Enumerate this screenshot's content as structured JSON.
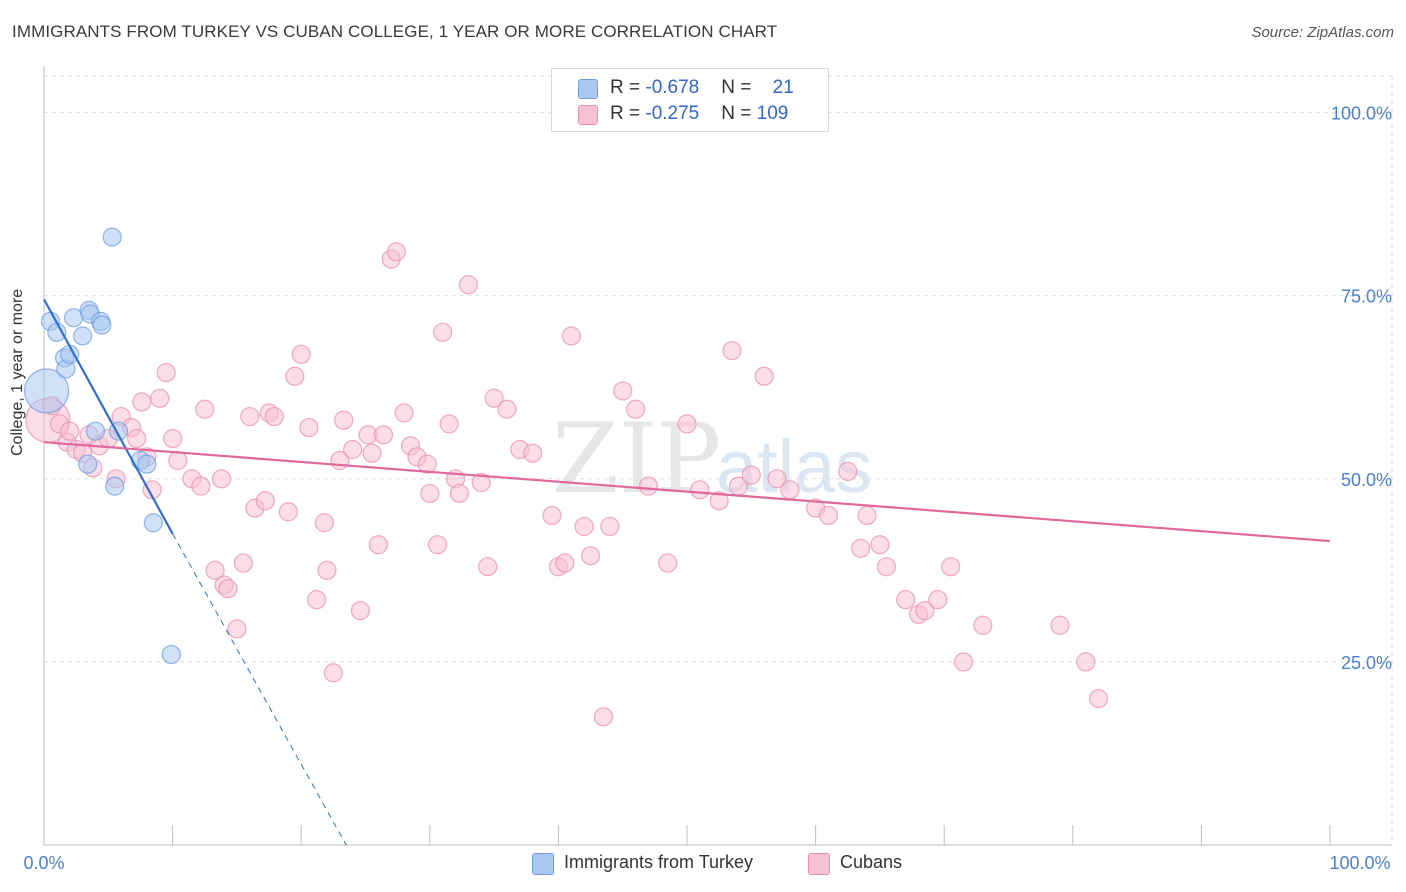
{
  "title": "IMMIGRANTS FROM TURKEY VS CUBAN COLLEGE, 1 YEAR OR MORE CORRELATION CHART",
  "source": "Source: ZipAtlas.com",
  "watermark": {
    "zip": "ZIP",
    "atlas": "atlas"
  },
  "legend": {
    "rows": [
      {
        "r_label": "R = ",
        "r_value": "-0.678",
        "n_label": "N = ",
        "n_value": "21",
        "color": "#a9c8f0",
        "border": "#6d9ee0"
      },
      {
        "r_label": "R = ",
        "r_value": "-0.275",
        "n_label": "N = ",
        "n_value": "109",
        "color": "#f7c1d3",
        "border": "#e98fae"
      }
    ]
  },
  "bottom_legend": [
    {
      "label": "Immigrants from Turkey",
      "color": "#a9c8f0",
      "border": "#6d9ee0"
    },
    {
      "label": "Cubans",
      "color": "#f7c1d3",
      "border": "#e98fae"
    }
  ],
  "chart_data": {
    "type": "scatter",
    "title": "IMMIGRANTS FROM TURKEY VS CUBAN COLLEGE, 1 YEAR OR MORE CORRELATION CHART",
    "xlabel": "",
    "ylabel": "College, 1 year or more",
    "xlim": [
      0,
      100
    ],
    "ylim": [
      0,
      105
    ],
    "x_tick_labels": [
      "0.0%",
      "100.0%"
    ],
    "y_ticks": [
      25,
      50,
      75,
      100
    ],
    "y_tick_labels": [
      "25.0%",
      "50.0%",
      "75.0%",
      "100.0%"
    ],
    "grid": true,
    "series": [
      {
        "name": "Immigrants from Turkey",
        "color": "#6d9ee0",
        "fill": "#a9c8f0",
        "x": [
          0.2,
          0.5,
          1.0,
          1.6,
          1.7,
          2.0,
          2.3,
          3.0,
          3.4,
          3.5,
          3.6,
          4.0,
          4.4,
          4.5,
          5.3,
          5.5,
          5.8,
          7.5,
          8.0,
          8.5,
          9.9
        ],
        "y": [
          62.0,
          71.5,
          70.0,
          66.5,
          65.0,
          67.0,
          72.0,
          69.5,
          52.0,
          73.0,
          72.5,
          56.5,
          71.5,
          71.0,
          83.0,
          49.0,
          56.5,
          52.5,
          52.0,
          44.0,
          26.0
        ],
        "trend": {
          "x": [
            0,
            10
          ],
          "y": [
            74.5,
            42.5
          ],
          "dashed_to": [
            23.5,
            0
          ]
        }
      },
      {
        "name": "Cubans",
        "color": "#e98fae",
        "fill": "#f7c1d3",
        "x": [
          0.3,
          0.6,
          1.2,
          1.8,
          2.0,
          2.5,
          3.0,
          3.5,
          3.8,
          4.3,
          5.0,
          5.6,
          6.0,
          6.8,
          7.2,
          7.6,
          8.0,
          8.4,
          9.0,
          9.5,
          10.0,
          10.4,
          11.5,
          12.2,
          12.5,
          13.3,
          13.8,
          14.0,
          14.3,
          15.0,
          15.5,
          16.0,
          16.4,
          17.2,
          17.5,
          17.9,
          19.0,
          19.5,
          20.0,
          20.6,
          21.2,
          21.8,
          22.0,
          22.5,
          23.0,
          23.3,
          24.0,
          24.6,
          25.2,
          25.5,
          26.0,
          26.4,
          27.0,
          27.4,
          28.0,
          28.5,
          29.0,
          29.8,
          30.0,
          30.6,
          31.0,
          31.5,
          32.0,
          32.3,
          33.0,
          34.0,
          34.5,
          35.0,
          36.0,
          37.0,
          38.0,
          39.5,
          40.0,
          40.5,
          41.0,
          42.0,
          42.5,
          43.5,
          44.0,
          45.0,
          46.0,
          47.0,
          48.5,
          50.0,
          51.0,
          52.5,
          53.5,
          54.0,
          55.0,
          56.0,
          57.0,
          58.0,
          60.0,
          61.0,
          62.5,
          63.5,
          64.0,
          65.0,
          65.5,
          67.0,
          68.0,
          68.5,
          69.5,
          70.5,
          71.5,
          73.0,
          79.0,
          81.0,
          82.0
        ],
        "y": [
          58.0,
          60.0,
          57.5,
          55.0,
          56.5,
          54.0,
          53.5,
          56.0,
          51.5,
          54.5,
          55.5,
          50.0,
          58.5,
          57.0,
          55.5,
          60.5,
          53.0,
          48.5,
          61.0,
          64.5,
          55.5,
          52.5,
          50.0,
          49.0,
          59.5,
          37.5,
          50.0,
          35.5,
          35.0,
          29.5,
          38.5,
          58.5,
          46.0,
          47.0,
          59.0,
          58.5,
          45.5,
          64.0,
          67.0,
          57.0,
          33.5,
          44.0,
          37.5,
          23.5,
          52.5,
          58.0,
          54.0,
          32.0,
          56.0,
          53.5,
          41.0,
          56.0,
          80.0,
          81.0,
          59.0,
          54.5,
          53.0,
          52.0,
          48.0,
          41.0,
          70.0,
          57.5,
          50.0,
          48.0,
          76.5,
          49.5,
          38.0,
          61.0,
          59.5,
          54.0,
          53.5,
          45.0,
          38.0,
          38.5,
          69.5,
          43.5,
          39.5,
          17.5,
          43.5,
          62.0,
          59.5,
          49.0,
          38.5,
          57.5,
          48.5,
          47.0,
          67.5,
          49.0,
          50.5,
          64.0,
          50.0,
          48.5,
          46.0,
          45.0,
          51.0,
          40.5,
          45.0,
          41.0,
          38.0,
          33.5,
          31.5,
          32.0,
          33.5,
          38.0,
          25.0,
          30.0,
          30.0,
          25.0,
          20.0
        ],
        "trend": {
          "x": [
            0,
            100
          ],
          "y": [
            55.0,
            41.5
          ]
        }
      }
    ]
  }
}
